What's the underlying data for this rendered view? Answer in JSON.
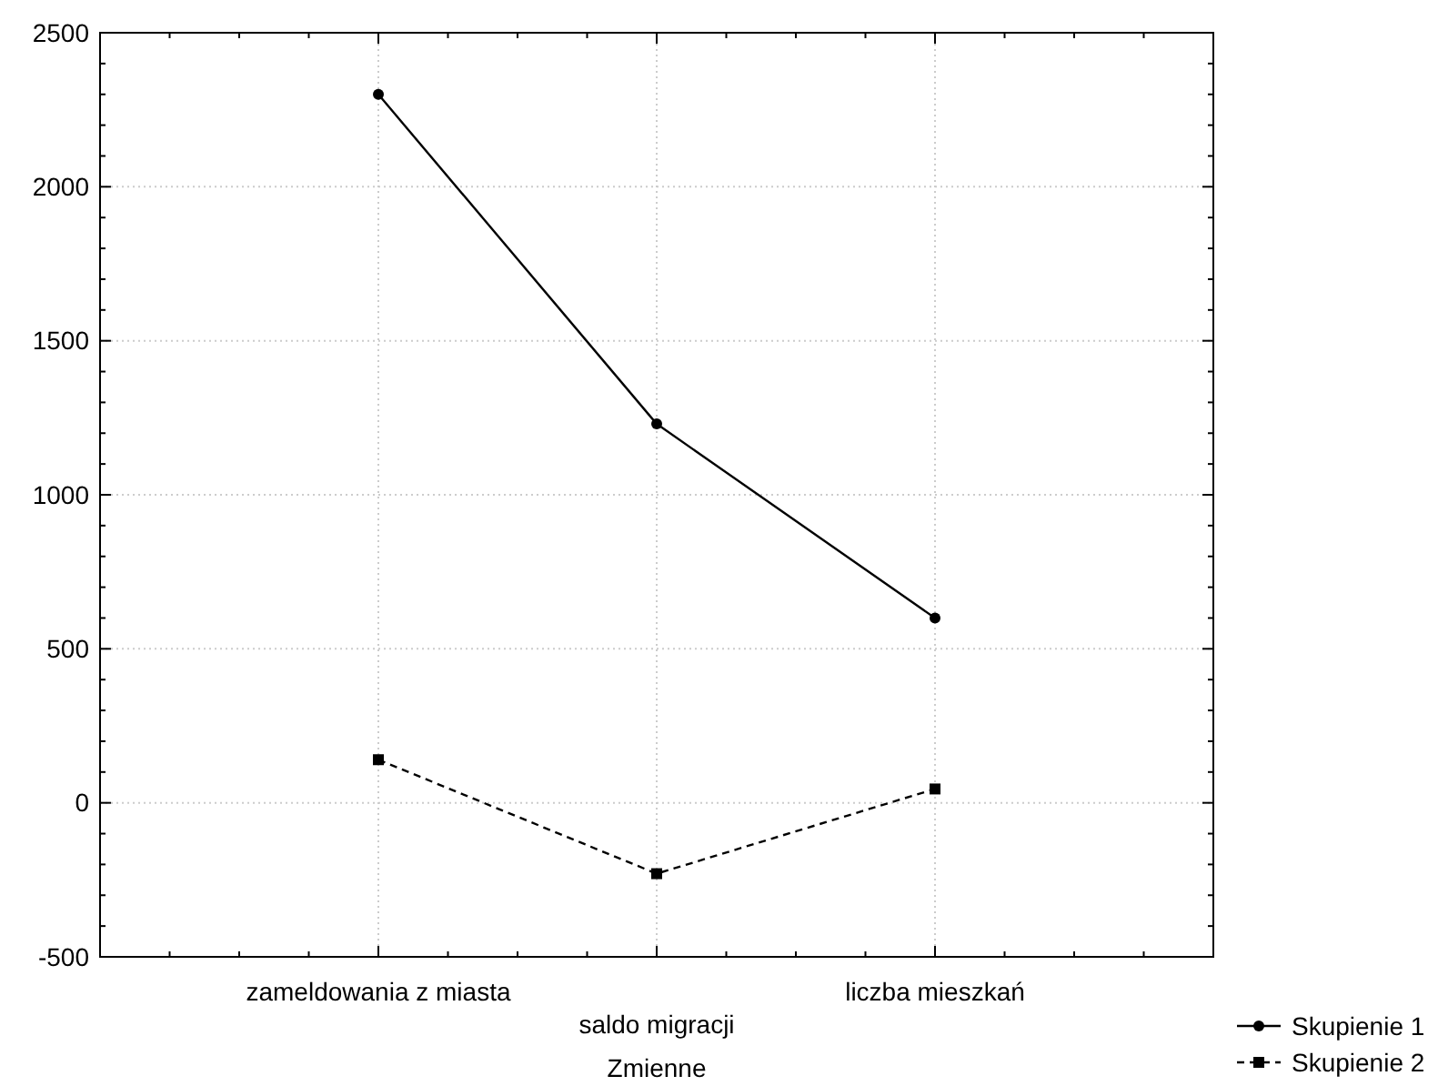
{
  "chart_data": {
    "type": "line",
    "xlabel": "Zmienne",
    "categories": [
      "zameldowania z miasta",
      "saldo migracji",
      "liczba mieszkań"
    ],
    "series": [
      {
        "name": "Skupienie 1",
        "color": "#000000",
        "values": [
          2300,
          1230,
          600
        ],
        "marker": "circle",
        "line_style": "solid"
      },
      {
        "name": "Skupienie 2",
        "color": "#000000",
        "values": [
          140,
          -230,
          45
        ],
        "marker": "square",
        "line_style": "dashed"
      }
    ],
    "ylim": [
      -500,
      2500
    ],
    "yticks": [
      -500,
      0,
      500,
      1000,
      1500,
      2000,
      2500
    ],
    "grid": true,
    "legend": "bottom right"
  }
}
